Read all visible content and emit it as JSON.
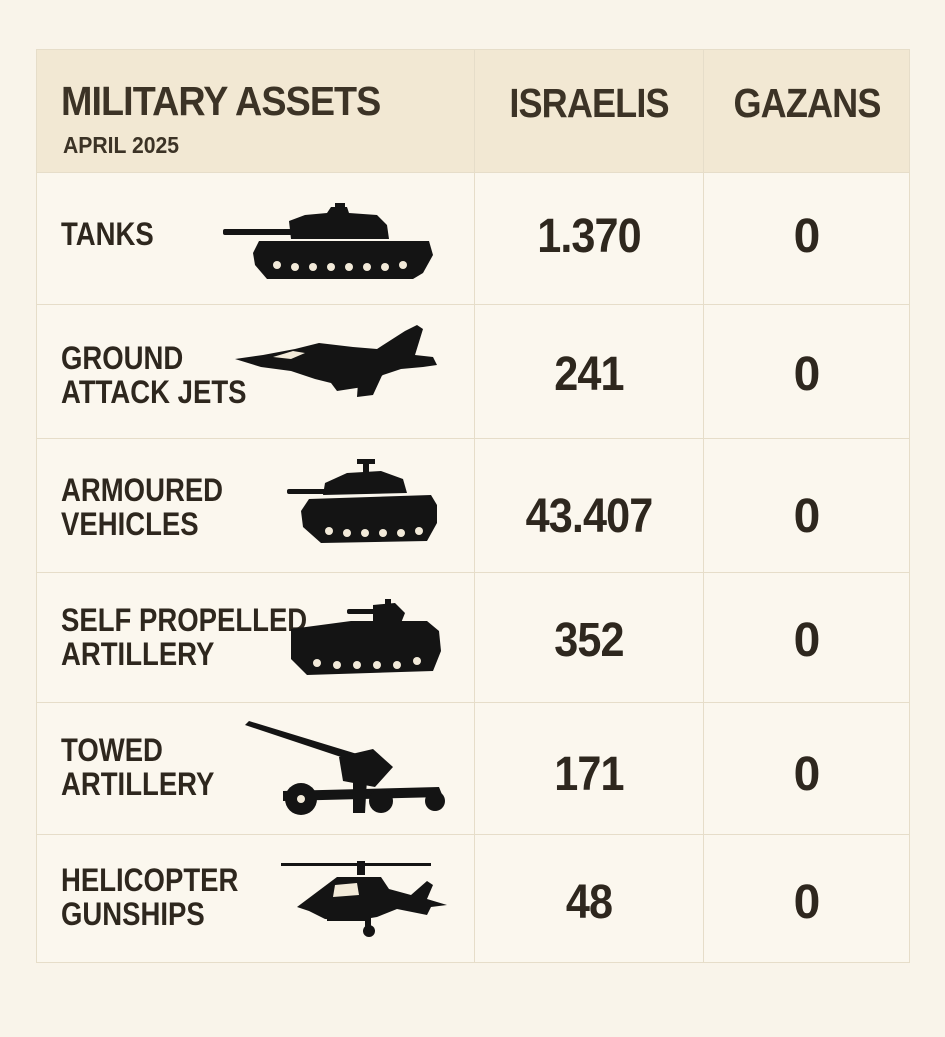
{
  "header": {
    "title": "MILITARY ASSETS",
    "subtitle": "APRIL 2025",
    "col_israelis": "ISRAELIS",
    "col_gazans": "GAZANS"
  },
  "rows": [
    {
      "line1": "TANKS",
      "line2": "",
      "israelis": "1.370",
      "gazans": "0",
      "icon": "tank-icon"
    },
    {
      "line1": "GROUND",
      "line2": "ATTACK JETS",
      "israelis": "241",
      "gazans": "0",
      "icon": "jet-icon"
    },
    {
      "line1": "ARMOURED",
      "line2": "VEHICLES",
      "israelis": "43.407",
      "gazans": "0",
      "icon": "armoured-vehicle-icon"
    },
    {
      "line1": "SELF PROPELLED",
      "line2": "ARTILLERY",
      "israelis": "352",
      "gazans": "0",
      "icon": "self-propelled-artillery-icon"
    },
    {
      "line1": "TOWED",
      "line2": "ARTILLERY",
      "israelis": "171",
      "gazans": "0",
      "icon": "towed-artillery-icon"
    },
    {
      "line1": "HELICOPTER",
      "line2": "GUNSHIPS",
      "israelis": "48",
      "gazans": "0",
      "icon": "helicopter-icon"
    }
  ],
  "chart_data": {
    "type": "table",
    "title": "MILITARY ASSETS",
    "subtitle": "APRIL 2025",
    "columns": [
      "MILITARY ASSETS",
      "ISRAELIS",
      "GAZANS"
    ],
    "categories": [
      "TANKS",
      "GROUND ATTACK JETS",
      "ARMOURED VEHICLES",
      "SELF PROPELLED ARTILLERY",
      "TOWED ARTILLERY",
      "HELICOPTER GUNSHIPS"
    ],
    "series": [
      {
        "name": "ISRAELIS",
        "values": [
          1370,
          241,
          43407,
          352,
          171,
          48
        ]
      },
      {
        "name": "GAZANS",
        "values": [
          0,
          0,
          0,
          0,
          0,
          0
        ]
      }
    ],
    "colors": {
      "background": "#f9f4ea",
      "header": "#f2e8d3",
      "text": "#2e271e",
      "icon": "#141414"
    }
  }
}
